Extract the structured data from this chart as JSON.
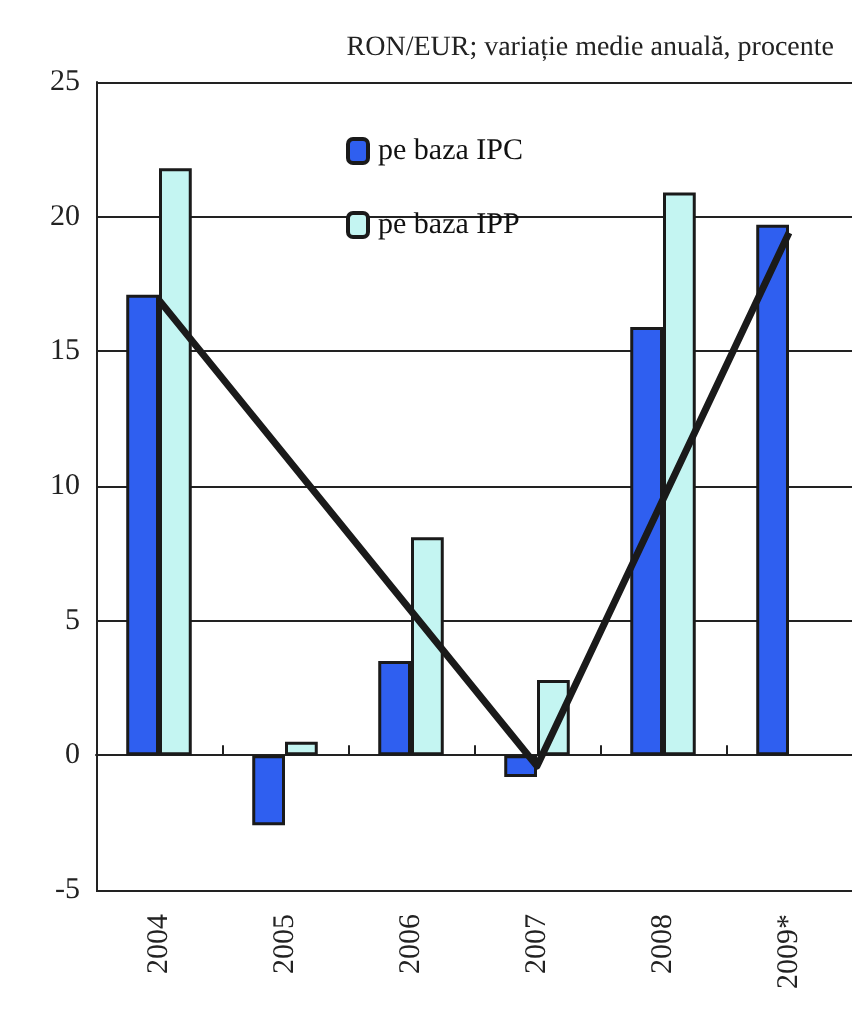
{
  "chart_data": {
    "type": "bar",
    "subtitle": "RON/EUR; variație medie anuală, procente",
    "categories": [
      "2004",
      "2005",
      "2006",
      "2007",
      "2008",
      "2009*"
    ],
    "series": [
      {
        "name": "pe baza IPC",
        "color": "#2f5ff0",
        "values": [
          17.1,
          -2.6,
          3.5,
          -0.8,
          15.9,
          19.7
        ]
      },
      {
        "name": "pe baza IPP",
        "color": "#c4f5f2",
        "values": [
          21.8,
          0.5,
          8.1,
          2.8,
          20.9,
          null
        ]
      },
      {
        "type": "line",
        "color": "#1a1a1a",
        "values": [
          16.9,
          null,
          null,
          -0.4,
          null,
          19.4
        ]
      }
    ],
    "ylim": [
      -5,
      25
    ],
    "yticks": [
      -5,
      0,
      5,
      10,
      15,
      20,
      25
    ],
    "grid": "y",
    "legend": "top",
    "marker": "none",
    "line_style": "solid"
  }
}
